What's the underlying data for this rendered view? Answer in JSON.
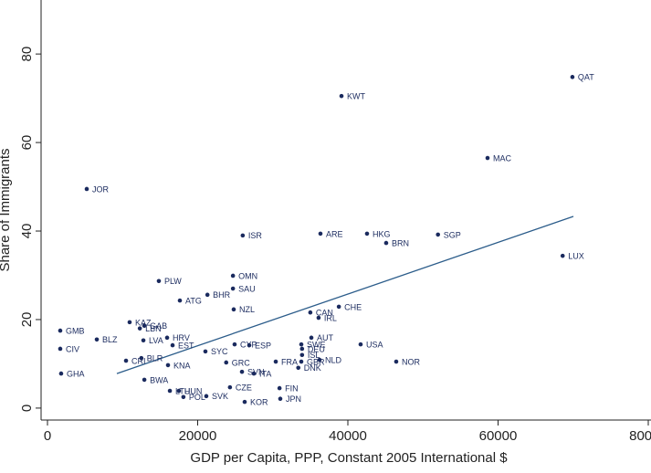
{
  "chart_data": {
    "type": "scatter",
    "xlabel": "GDP per Capita, PPP, Constant 2005 International $",
    "ylabel": "Share of Immigrants",
    "xlim": [
      -850,
      80365
    ],
    "ylim": [
      -2.7,
      92.2
    ],
    "xticks": [
      0,
      20000,
      40000,
      60000,
      80000
    ],
    "yticks": [
      0,
      20,
      40,
      60,
      80
    ],
    "color": "#1a2a5e",
    "fit_color": "#2b5c8a",
    "labels": [
      "QAT",
      "KWT",
      "MAC",
      "JOR",
      "ISR",
      "ARE",
      "HKG",
      "BRN",
      "SGP",
      "LUX",
      "OMN",
      "SAU",
      "PLW",
      "BHR",
      "ATG",
      "NZL",
      "CHE",
      "CAN",
      "IRL",
      "KAZ",
      "LBN",
      "GAB",
      "GMB",
      "HRV",
      "BLZ",
      "LVA",
      "EST",
      "AUT",
      "SWE",
      "USA",
      "CYP",
      "ESP",
      "SYC",
      "DEU",
      "CIV",
      "ISL",
      "NLD",
      "NOR",
      "FRA",
      "GBR",
      "DNK",
      "GRC",
      "ITA",
      "SVN",
      "CRI",
      "BLR",
      "KNA",
      "BWA",
      "GHA",
      "FIN",
      "JPN",
      "KOR",
      "SVK",
      "POL",
      "CZE",
      "HUN",
      "LTU"
    ],
    "x": [
      69900,
      39150,
      58600,
      5230,
      26000,
      36350,
      42550,
      45100,
      52000,
      68600,
      24700,
      24700,
      14830,
      21300,
      17630,
      24800,
      38800,
      35000,
      36100,
      10940,
      12300,
      12900,
      1700,
      15930,
      6570,
      12770,
      16660,
      35140,
      33800,
      41700,
      24920,
      26870,
      21030,
      33900,
      1700,
      33900,
      36230,
      46440,
      30400,
      33800,
      33400,
      23800,
      27480,
      25900,
      10460,
      12500,
      16050,
      12900,
      1820,
      30900,
      31000,
      26260,
      21150,
      18100,
      24300,
      17500,
      16300
    ],
    "values": [
      74.8,
      70.5,
      56.5,
      49.5,
      39,
      39.4,
      39.4,
      37.3,
      39.2,
      34.4,
      29.9,
      27,
      28.7,
      25.6,
      24.3,
      22.3,
      22.9,
      21.6,
      20.4,
      19.4,
      18,
      18.6,
      17.5,
      15.9,
      15.5,
      15.3,
      14.2,
      15.9,
      14.4,
      14.4,
      14.4,
      14.2,
      12.8,
      13.4,
      13.4,
      12,
      10.9,
      10.5,
      10.5,
      10.5,
      9.1,
      10.3,
      7.8,
      8.2,
      10.7,
      11.3,
      9.7,
      6.4,
      7.8,
      4.5,
      2.1,
      1.4,
      2.7,
      2.5,
      4.7,
      3.9,
      3.9
    ],
    "fit": {
      "x": [
        9240,
        70030
      ],
      "y": [
        7.8,
        43.3
      ]
    }
  }
}
